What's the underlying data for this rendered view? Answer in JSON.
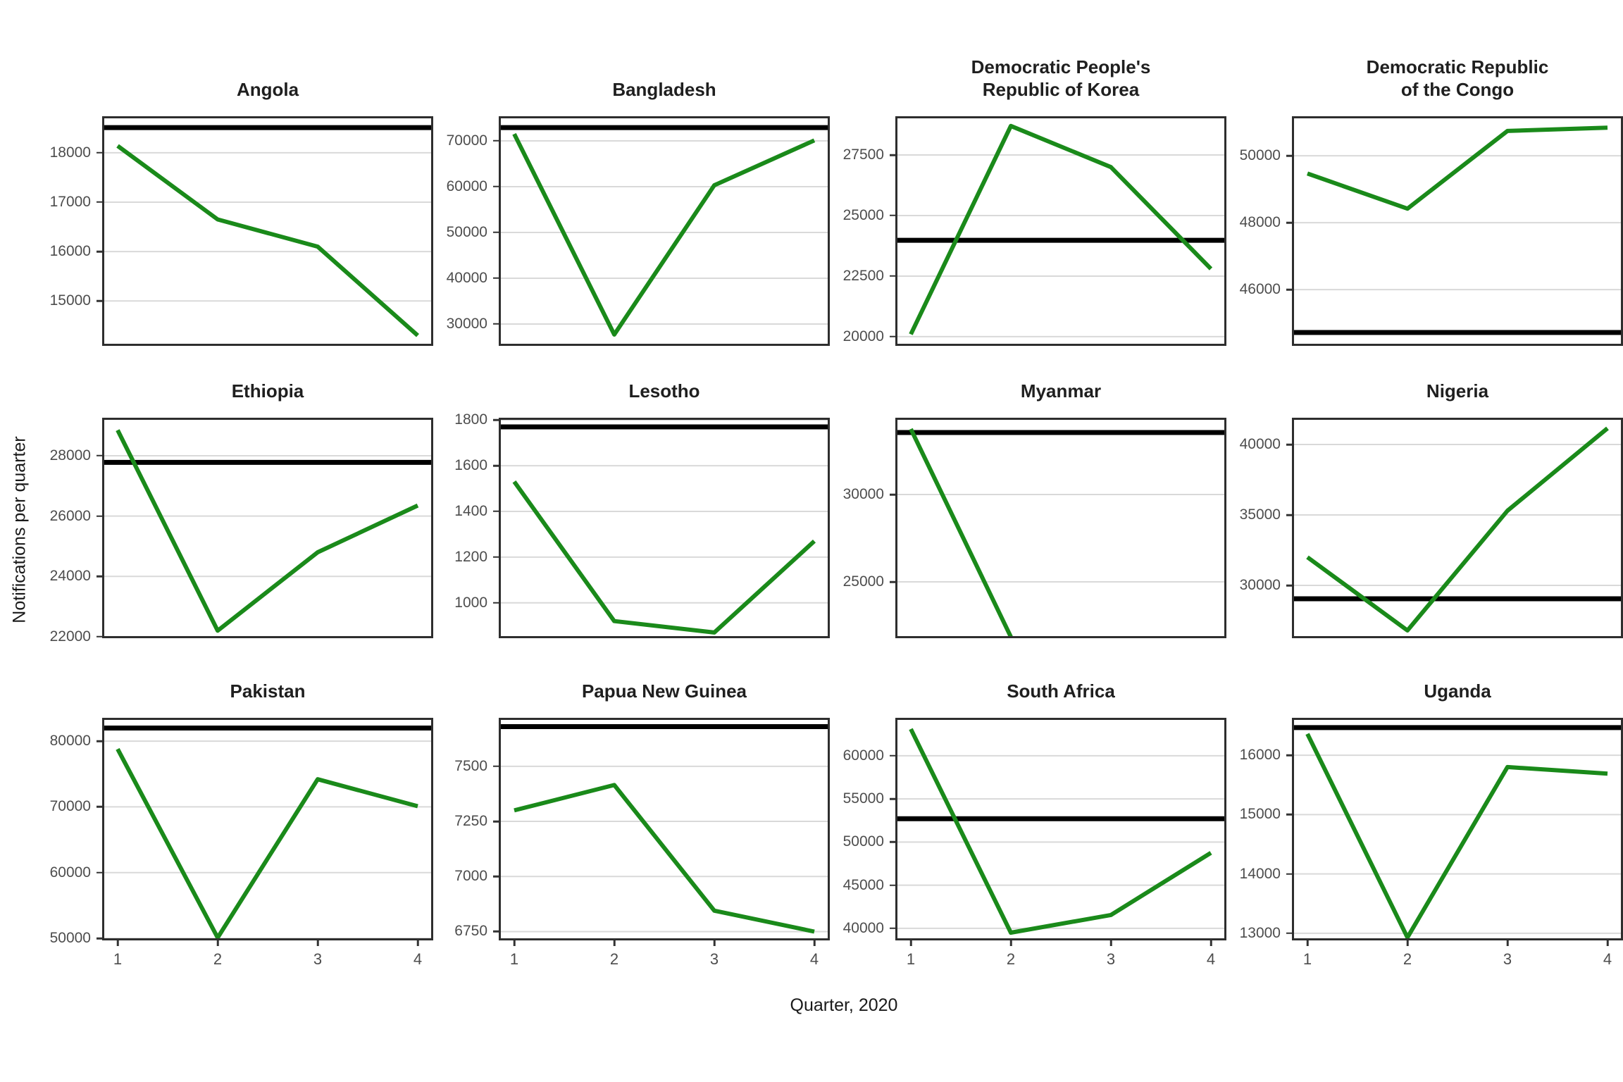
{
  "figure": {
    "ylabel": "Notifications per quarter",
    "xlabel": "Quarter, 2020",
    "x_ticks": [
      "1",
      "2",
      "3",
      "4"
    ]
  },
  "colors": {
    "trend_line": "#1a8a1a",
    "reference_line": "#000000",
    "gridline": "#d9d9d9",
    "panel_border": "#2e2e2e",
    "tick_text": "#4d4d4d",
    "title_text": "#1f1f1f"
  },
  "chart_data": [
    {
      "type": "line",
      "title": "Angola",
      "title_lines": [
        "Angola"
      ],
      "x": [
        1,
        2,
        3,
        4
      ],
      "values": [
        18140,
        16650,
        16100,
        14300
      ],
      "ref_line": 18510,
      "ylim": [
        14090,
        18740
      ],
      "yticks": [
        15000,
        16000,
        17000,
        18000
      ],
      "xlabel": "Quarter, 2020",
      "ylabel": "Notifications per quarter",
      "grid": "horizontal-only",
      "legend": "none"
    },
    {
      "type": "line",
      "title": "Bangladesh",
      "title_lines": [
        "Bangladesh"
      ],
      "x": [
        1,
        2,
        3,
        4
      ],
      "values": [
        71500,
        27700,
        60300,
        70100
      ],
      "ref_line": 72900,
      "ylim": [
        25230,
        75380
      ],
      "yticks": [
        30000,
        40000,
        50000,
        60000,
        70000
      ],
      "xlabel": "Quarter, 2020",
      "ylabel": "Notifications per quarter",
      "grid": "horizontal-only",
      "legend": "none"
    },
    {
      "type": "line",
      "title": "Democratic People's Republic of Korea",
      "title_lines": [
        "Democratic People's",
        "Republic of Korea"
      ],
      "x": [
        1,
        2,
        3,
        4
      ],
      "values": [
        20100,
        28700,
        27000,
        22800
      ],
      "ref_line": 23980,
      "ylim": [
        19620,
        29100
      ],
      "yticks": [
        20000,
        22500,
        25000,
        27500
      ],
      "xlabel": "Quarter, 2020",
      "ylabel": "Notifications per quarter",
      "grid": "horizontal-only",
      "legend": "none"
    },
    {
      "type": "line",
      "title": "Democratic Republic of the Congo",
      "title_lines": [
        "Democratic Republic",
        "of the Congo"
      ],
      "x": [
        1,
        2,
        3,
        4
      ],
      "values": [
        49470,
        48420,
        50740,
        50840
      ],
      "ref_line": 44720,
      "ylim": [
        44320,
        51180
      ],
      "yticks": [
        46000,
        48000,
        50000
      ],
      "xlabel": "Quarter, 2020",
      "ylabel": "Notifications per quarter",
      "grid": "horizontal-only",
      "legend": "none"
    },
    {
      "type": "line",
      "title": "Ethiopia",
      "title_lines": [
        "Ethiopia"
      ],
      "x": [
        1,
        2,
        3,
        4
      ],
      "values": [
        28850,
        22200,
        24800,
        26350
      ],
      "ref_line": 27780,
      "ylim": [
        21950,
        29260
      ],
      "yticks": [
        22000,
        24000,
        26000,
        28000
      ],
      "xlabel": "Quarter, 2020",
      "ylabel": "Notifications per quarter",
      "grid": "horizontal-only",
      "legend": "none"
    },
    {
      "type": "line",
      "title": "Lesotho",
      "title_lines": [
        "Lesotho"
      ],
      "x": [
        1,
        2,
        3,
        4
      ],
      "values": [
        1530,
        920,
        870,
        1270
      ],
      "ref_line": 1770,
      "ylim": [
        845,
        1810
      ],
      "yticks": [
        1000,
        1200,
        1400,
        1600,
        1800
      ],
      "xlabel": "Quarter, 2020",
      "ylabel": "Notifications per quarter",
      "grid": "horizontal-only",
      "legend": "none"
    },
    {
      "type": "line",
      "title": "Myanmar",
      "title_lines": [
        "Myanmar"
      ],
      "x": [
        1,
        2,
        3,
        4
      ],
      "values": [
        33750,
        21850,
        null,
        null
      ],
      "ref_line": 33550,
      "ylim": [
        21775,
        34395
      ],
      "yticks": [
        25000,
        30000
      ],
      "xlabel": "Quarter, 2020",
      "ylabel": "Notifications per quarter",
      "grid": "horizontal-only",
      "legend": "none"
    },
    {
      "type": "line",
      "title": "Nigeria",
      "title_lines": [
        "Nigeria"
      ],
      "x": [
        1,
        2,
        3,
        4
      ],
      "values": [
        32000,
        26800,
        35300,
        41150
      ],
      "ref_line": 29050,
      "ylim": [
        26250,
        41900
      ],
      "yticks": [
        30000,
        35000,
        40000
      ],
      "xlabel": "Quarter, 2020",
      "ylabel": "Notifications per quarter",
      "grid": "horizontal-only",
      "legend": "none"
    },
    {
      "type": "line",
      "title": "Pakistan",
      "title_lines": [
        "Pakistan"
      ],
      "x": [
        1,
        2,
        3,
        4
      ],
      "values": [
        78800,
        50100,
        74200,
        70100
      ],
      "ref_line": 82000,
      "ylim": [
        49680,
        83550
      ],
      "yticks": [
        50000,
        60000,
        70000,
        80000
      ],
      "xlabel": "Quarter, 2020",
      "ylabel": "Notifications per quarter",
      "grid": "horizontal-only",
      "legend": "none"
    },
    {
      "type": "line",
      "title": "Papua New Guinea",
      "title_lines": [
        "Papua New Guinea"
      ],
      "x": [
        1,
        2,
        3,
        4
      ],
      "values": [
        7300,
        7415,
        6845,
        6750
      ],
      "ref_line": 7680,
      "ylim": [
        6710,
        7720
      ],
      "yticks": [
        6750,
        7000,
        7250,
        7500
      ],
      "xlabel": "Quarter, 2020",
      "ylabel": "Notifications per quarter",
      "grid": "horizontal-only",
      "legend": "none"
    },
    {
      "type": "line",
      "title": "South Africa",
      "title_lines": [
        "South Africa"
      ],
      "x": [
        1,
        2,
        3,
        4
      ],
      "values": [
        63100,
        39500,
        41550,
        48750
      ],
      "ref_line": 52700,
      "ylim": [
        38600,
        64400
      ],
      "yticks": [
        40000,
        45000,
        50000,
        55000,
        60000
      ],
      "xlabel": "Quarter, 2020",
      "ylabel": "Notifications per quarter",
      "grid": "horizontal-only",
      "legend": "none"
    },
    {
      "type": "line",
      "title": "Uganda",
      "title_lines": [
        "Uganda"
      ],
      "x": [
        1,
        2,
        3,
        4
      ],
      "values": [
        16360,
        12930,
        15800,
        15690
      ],
      "ref_line": 16465,
      "ylim": [
        12880,
        16630
      ],
      "yticks": [
        13000,
        14000,
        15000,
        16000
      ],
      "xlabel": "Quarter, 2020",
      "ylabel": "Notifications per quarter",
      "grid": "horizontal-only",
      "legend": "none"
    }
  ]
}
